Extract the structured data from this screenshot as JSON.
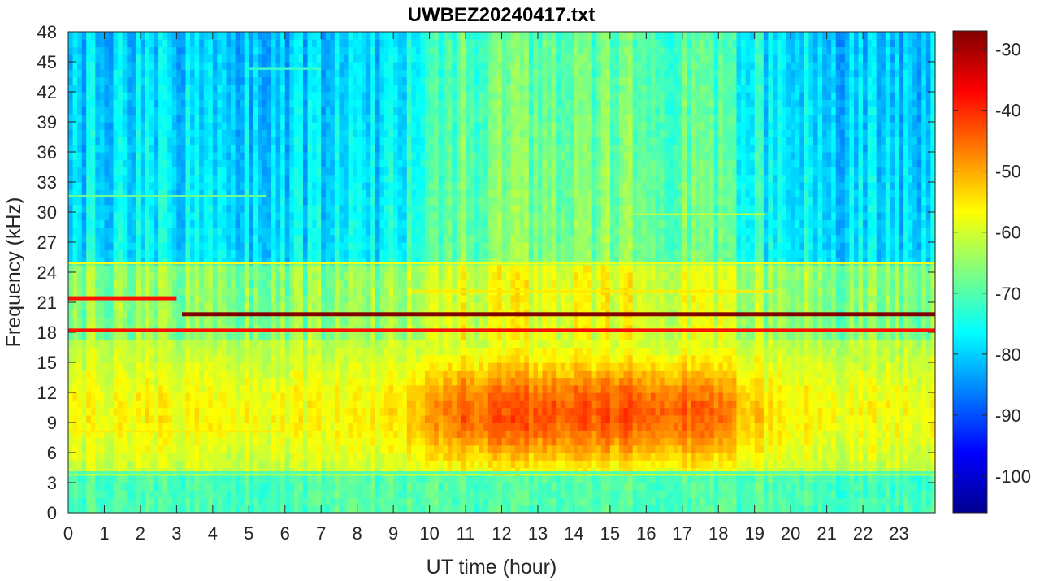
{
  "chart_data": {
    "type": "heatmap",
    "title": "UWBEZ20240417.txt",
    "xlabel": "UT time (hour)",
    "ylabel": "Frequency (kHz)",
    "xlim": [
      0,
      24
    ],
    "ylim": [
      0,
      48
    ],
    "x_ticks": [
      "0",
      "1",
      "2",
      "3",
      "4",
      "5",
      "6",
      "7",
      "8",
      "9",
      "10",
      "11",
      "12",
      "13",
      "14",
      "15",
      "16",
      "17",
      "18",
      "19",
      "20",
      "21",
      "22",
      "23"
    ],
    "y_ticks": [
      "0",
      "3",
      "6",
      "9",
      "12",
      "15",
      "18",
      "21",
      "24",
      "27",
      "30",
      "33",
      "36",
      "39",
      "42",
      "45",
      "48"
    ],
    "colorbar": {
      "colormap": "jet",
      "range": [
        -106,
        -27
      ],
      "ticks": [
        "-30",
        "-40",
        "-50",
        "-60",
        "-70",
        "-80",
        "-90",
        "-100"
      ]
    },
    "bands": [
      {
        "freq_khz": 19.8,
        "x_start": 3.15,
        "x_end": 24,
        "level": -27,
        "thickness": 0.4
      },
      {
        "freq_khz": 21.4,
        "x_start": 0,
        "x_end": 3.0,
        "level": -38,
        "thickness": 0.4
      },
      {
        "freq_khz": 18.2,
        "x_start": 0,
        "x_end": 24,
        "level": -38,
        "thickness": 0.35
      },
      {
        "freq_khz": 24.9,
        "x_start": 0,
        "x_end": 24,
        "level": -58,
        "thickness": 0.25
      },
      {
        "freq_khz": 22.1,
        "x_start": 9.5,
        "x_end": 19.5,
        "level": -55,
        "thickness": 0.2
      },
      {
        "freq_khz": 44.3,
        "x_start": 5.0,
        "x_end": 7.0,
        "level": -72,
        "thickness": 0.2
      },
      {
        "freq_khz": 31.6,
        "x_start": 0,
        "x_end": 5.5,
        "level": -68,
        "thickness": 0.2
      },
      {
        "freq_khz": 8.1,
        "x_start": 0,
        "x_end": 6.0,
        "level": -55,
        "thickness": 0.2
      },
      {
        "freq_khz": 29.8,
        "x_start": 15.5,
        "x_end": 19.3,
        "level": -62,
        "thickness": 0.15
      },
      {
        "freq_khz": 4.0,
        "x_start": 0,
        "x_end": 24,
        "level": -70,
        "thickness": 0.25
      }
    ]
  }
}
